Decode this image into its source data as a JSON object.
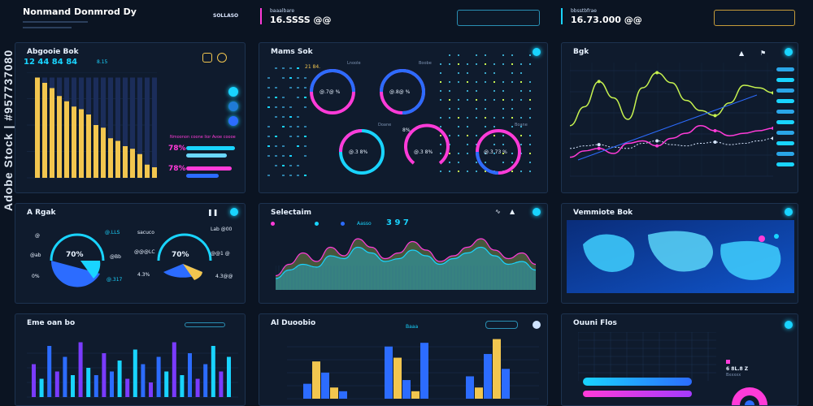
{
  "header": {
    "title": "Nonmand Donmrod Dy",
    "sub_lines": [
      "",
      ""
    ],
    "small_value": "SOLLASO",
    "mid_label": "baaalbare",
    "mid_value": "16.SSSS @@",
    "mid_button": "",
    "right_label": "bbsstbfrae",
    "right_value": "16.73.000 @@",
    "right_button": ""
  },
  "panels": {
    "p1": {
      "title": "Abgooie Bok",
      "numbers": "12 44  84  84",
      "small": "8.15",
      "legend_title": "Nmoonon coone lior Avoe coooe",
      "pct1": "78%",
      "pct2": "78%",
      "bottom_labels": [
        "",
        "",
        ""
      ]
    },
    "p2": {
      "title": "Mams Sok",
      "donuts": [
        {
          "label": "Lnoole",
          "value": "21 84.",
          "center": "@.7@ %"
        },
        {
          "label": "Boobe",
          "value": "",
          "center": "@.8@ %"
        },
        {
          "label": "Doane",
          "value": "",
          "center": "@.3 8%"
        },
        {
          "label": "",
          "value": "8%",
          "center": "@.3 8%"
        },
        {
          "label": "Boane",
          "value": "",
          "center": "@.3 73 %"
        }
      ],
      "top_labels": [
        "",
        "",
        ""
      ]
    },
    "p3": {
      "title": "Bgk",
      "axis_labels": [
        "",
        "",
        "",
        "",
        ""
      ]
    },
    "p4": {
      "title": "A Rgak",
      "gauge1": "70%",
      "gauge2": "70%",
      "left_labels": [
        "@ ",
        "@ab",
        "0%"
      ],
      "mid_labels": [
        "@.LLS",
        "@Bb",
        "@.317"
      ],
      "mid2_labels": [
        "sacuco",
        "@@@LC",
        "4.3%"
      ],
      "right_labels": [
        "Lab @00",
        "@@1 @",
        "4.3@@"
      ]
    },
    "p5": {
      "title": "Selectaim",
      "numbers": "3 9  7",
      "legend": [
        "",
        "",
        "",
        "Aasso"
      ]
    },
    "p6": {
      "title": "Vemmiote Bok"
    },
    "p7": {
      "title": "Eme oan bo"
    },
    "p8": {
      "title": "Al Duoobio",
      "sub": "Baaa",
      "button": ""
    },
    "p9": {
      "title": "Ouuni Flos",
      "stat_label": "",
      "stat_value": "6 8L.8 Z",
      "stat_sub": "Bxxxxx"
    }
  },
  "watermark": "Adobe Stock | #957737080",
  "colors": {
    "cyan": "#19d4ff",
    "magenta": "#ff3bd8",
    "blue": "#2c6cff",
    "yellow": "#f2c64f",
    "lime": "#c6f24f",
    "bg": "#0b1422",
    "panel": "#0f1b2d"
  },
  "chart_data": [
    {
      "type": "bar",
      "title": "Abgooie Bok",
      "values": [
        38,
        36,
        34,
        31,
        29,
        27,
        26,
        24,
        20,
        19,
        15,
        14,
        12,
        11,
        9,
        5,
        4
      ]
    },
    {
      "type": "bar",
      "title": "Eme oan bo",
      "values": [
        18,
        10,
        28,
        14,
        22,
        12,
        30,
        16,
        12,
        24,
        14,
        20,
        10,
        26,
        18,
        8,
        22,
        14,
        30,
        12,
        24,
        10,
        18,
        28,
        14,
        22
      ]
    },
    {
      "type": "bar",
      "title": "Al Duoobio",
      "series": [
        {
          "values": [
            8,
            20,
            14,
            6,
            4,
            28,
            22,
            10,
            4,
            30,
            12,
            6,
            24,
            32,
            16
          ]
        }
      ]
    },
    {
      "type": "line",
      "title": "Bgk",
      "series": [
        {
          "values": [
            40,
            55,
            75,
            62,
            45,
            70,
            82,
            74,
            60,
            52,
            48,
            58,
            72,
            70,
            66
          ]
        },
        {
          "values": [
            22,
            24,
            25,
            23,
            22,
            26,
            28,
            25,
            24,
            26,
            27,
            25,
            26,
            28,
            30
          ]
        },
        {
          "values": [
            15,
            20,
            22,
            18,
            26,
            28,
            24,
            30,
            34,
            40,
            36,
            32,
            34,
            36,
            38
          ]
        }
      ]
    },
    {
      "type": "area",
      "title": "Selectaim",
      "series": [
        {
          "values": [
            10,
            18,
            26,
            20,
            30,
            24,
            36,
            30,
            22,
            26,
            34,
            28,
            20,
            24,
            30,
            36,
            28,
            22,
            26,
            18
          ]
        },
        {
          "values": [
            8,
            14,
            18,
            16,
            24,
            22,
            30,
            26,
            20,
            22,
            28,
            24,
            18,
            22,
            26,
            30,
            24,
            18,
            20,
            14
          ]
        }
      ]
    }
  ]
}
